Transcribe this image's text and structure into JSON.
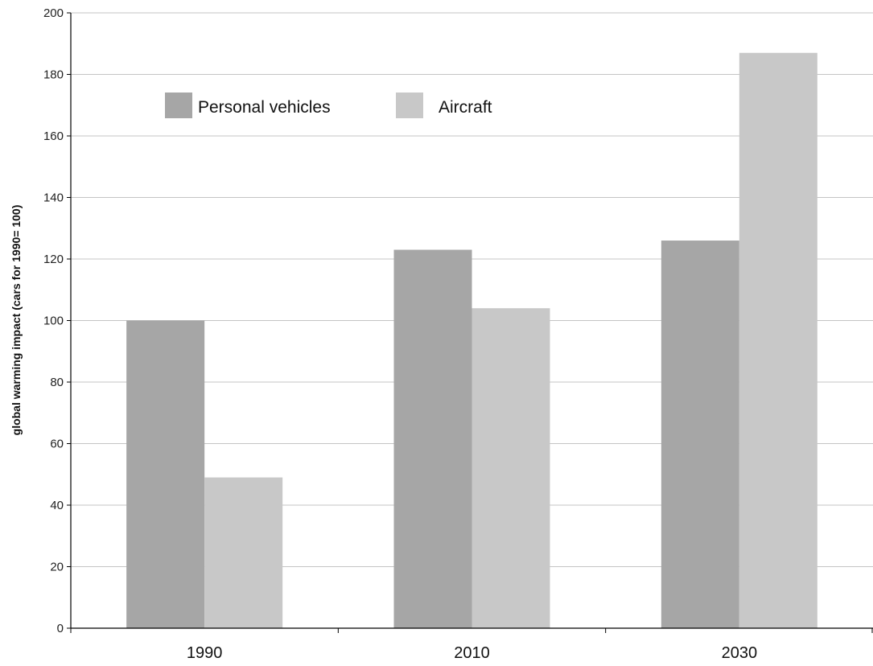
{
  "chart_data": {
    "type": "bar",
    "categories": [
      "1990",
      "2010",
      "2030"
    ],
    "series": [
      {
        "name": "Personal vehicles",
        "values": [
          100,
          123,
          126
        ],
        "color": "#a6a6a6"
      },
      {
        "name": "Aircraft",
        "values": [
          49,
          104,
          187
        ],
        "color": "#c8c8c8"
      }
    ],
    "title": "",
    "xlabel": "",
    "ylabel": "global warming impact (cars for 1990= 100)",
    "ylim": [
      0,
      200
    ],
    "yticks": [
      "0",
      "20",
      "40",
      "60",
      "80",
      "100",
      "120",
      "140",
      "160",
      "180",
      "200"
    ],
    "grid": true,
    "legend_position": "top-left"
  }
}
